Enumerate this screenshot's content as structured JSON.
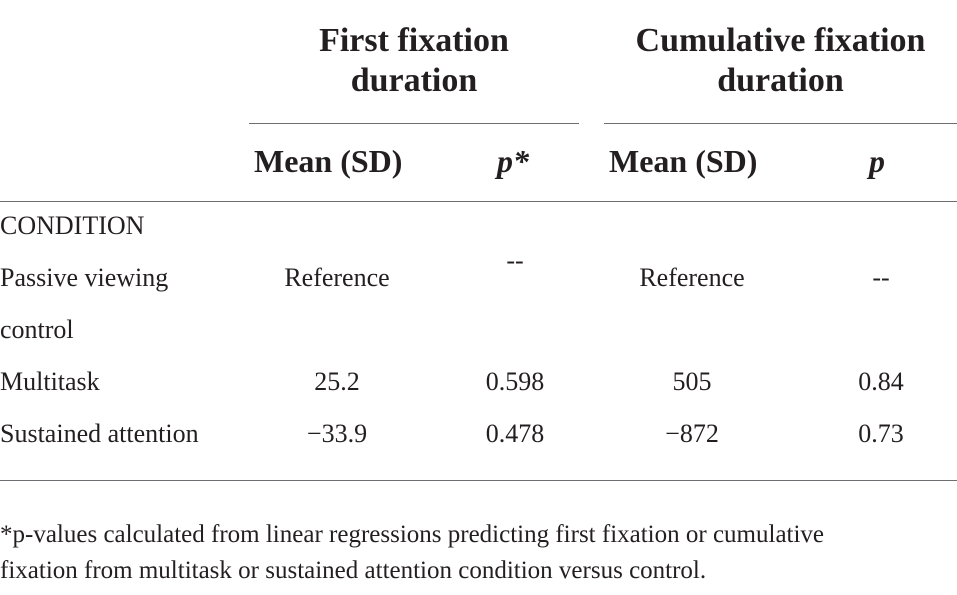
{
  "group_headers": {
    "first": [
      "First fixation",
      "duration"
    ],
    "cumulative": [
      "Cumulative fixation",
      "duration"
    ]
  },
  "sub_headers": {
    "first_mean": "Mean (SD)",
    "first_p": "p*",
    "cum_mean": "Mean (SD)",
    "cum_p": "p"
  },
  "section_label": "CONDITION",
  "rows": [
    {
      "label": [
        "Passive viewing",
        "control"
      ],
      "first_mean": "Reference",
      "first_p": "--",
      "cum_mean": "Reference",
      "cum_p": "--"
    },
    {
      "label": [
        "Multitask"
      ],
      "first_mean": "25.2",
      "first_p": "0.598",
      "cum_mean": "505",
      "cum_p": "0.84"
    },
    {
      "label": [
        "Sustained attention"
      ],
      "first_mean": "−33.9",
      "first_p": "0.478",
      "cum_mean": "−872",
      "cum_p": "0.73"
    }
  ],
  "footnote": [
    "*p-values calculated from linear regressions predicting first fixation or cumulative",
    "fixation from multitask or sustained attention condition versus control."
  ]
}
